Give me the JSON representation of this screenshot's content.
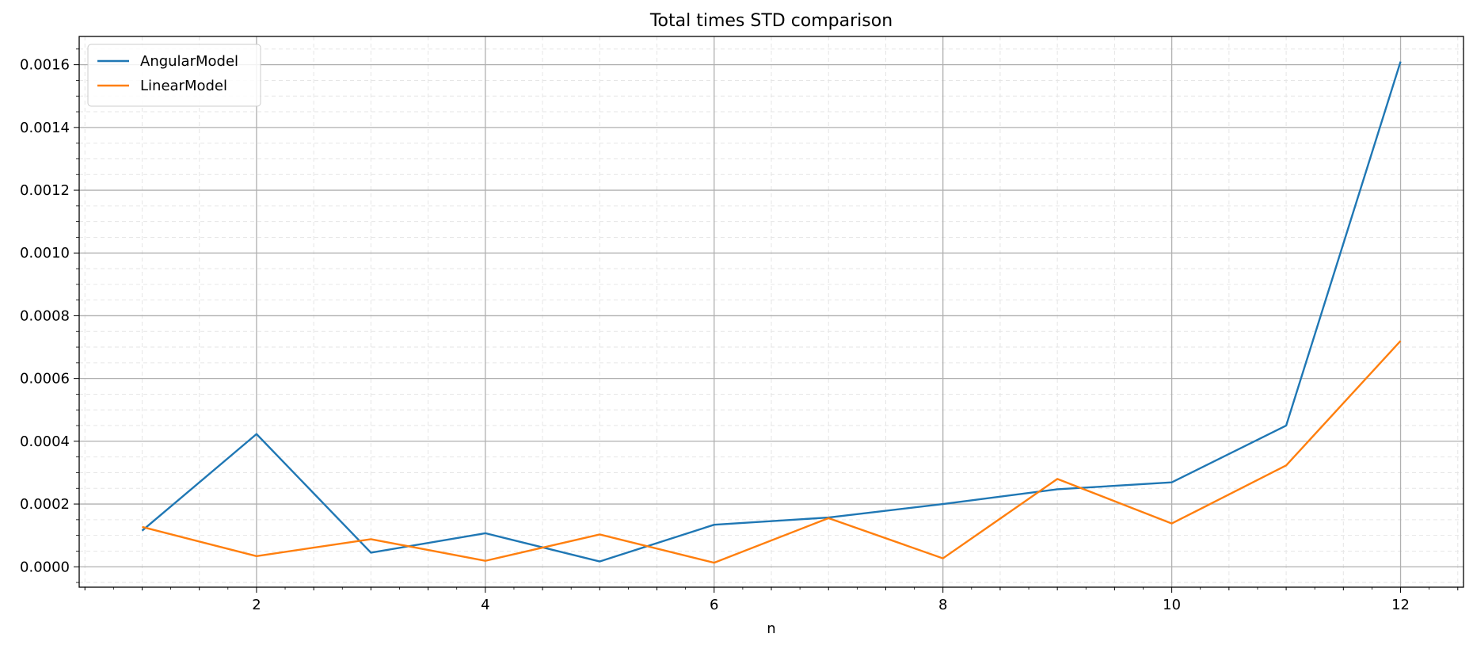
{
  "chart_data": {
    "type": "line",
    "title": "Total times STD comparison",
    "xlabel": "n",
    "ylabel": "",
    "x": [
      1,
      2,
      3,
      4,
      5,
      6,
      7,
      8,
      9,
      10,
      11,
      12
    ],
    "xlim": [
      0.45,
      12.55
    ],
    "ylim": [
      -6.5e-05,
      0.00169
    ],
    "xticks": [
      2,
      4,
      6,
      8,
      10,
      12
    ],
    "xtick_labels": [
      "2",
      "4",
      "6",
      "8",
      "10",
      "12"
    ],
    "yticks": [
      0,
      0.0002,
      0.0004,
      0.0006,
      0.0008,
      0.001,
      0.0012,
      0.0014,
      0.0016
    ],
    "ytick_labels": [
      "0.0000",
      "0.0002",
      "0.0004",
      "0.0006",
      "0.0008",
      "0.0010",
      "0.0012",
      "0.0014",
      "0.0016"
    ],
    "grid": true,
    "minor_grid": true,
    "legend_position": "top-left",
    "series": [
      {
        "name": "AngularModel",
        "color": "#1f77b4",
        "values": [
          0.000115,
          0.000423,
          4.5e-05,
          0.000107,
          1.7e-05,
          0.000134,
          0.000157,
          0.0002,
          0.000247,
          0.000269,
          0.00045,
          0.00161
        ]
      },
      {
        "name": "LinearModel",
        "color": "#ff7f0e",
        "values": [
          0.000127,
          3.4e-05,
          8.8e-05,
          1.9e-05,
          0.000103,
          1.3e-05,
          0.000155,
          2.7e-05,
          0.00028,
          0.000138,
          0.000323,
          0.00072
        ]
      }
    ]
  }
}
